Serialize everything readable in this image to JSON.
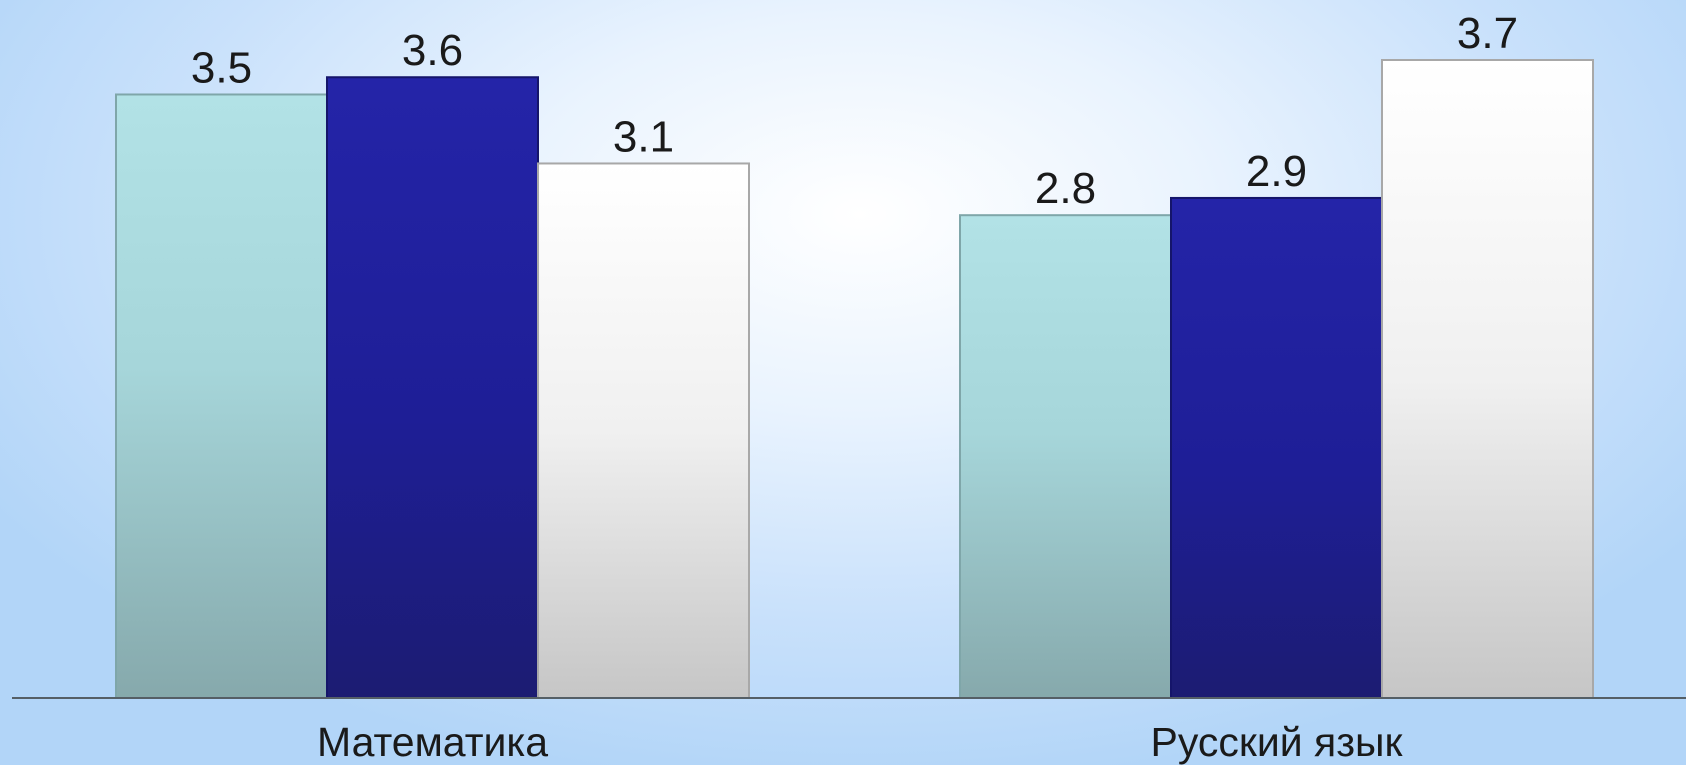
{
  "chart_data": {
    "type": "bar",
    "title": "",
    "xlabel": "",
    "ylabel": "",
    "categories": [
      "Математика",
      "Русский язык"
    ],
    "series": [
      {
        "values": [
          3.5,
          2.8
        ],
        "color": "#a6d8dc"
      },
      {
        "values": [
          3.6,
          2.9
        ],
        "color": "#1f1f9a"
      },
      {
        "values": [
          3.1,
          3.7
        ],
        "color": "#f6f6f6"
      }
    ],
    "ylim": [
      0,
      3.7
    ],
    "value_labels": true,
    "grid": false,
    "legend": "none"
  }
}
